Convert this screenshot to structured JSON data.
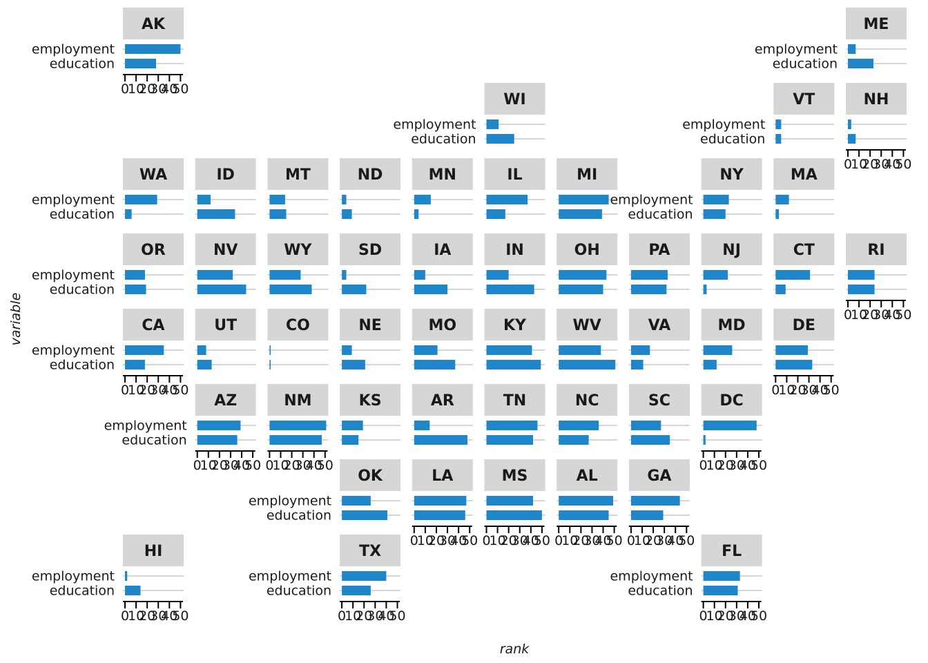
{
  "chart_data": {
    "type": "bar",
    "orientation": "horizontal",
    "layout": "geofacet-us-states",
    "xlabel": "rank",
    "ylabel": "variable",
    "categories": [
      "employment",
      "education"
    ],
    "xlim": [
      0,
      51
    ],
    "x_ticks": [
      0,
      10,
      20,
      30,
      40,
      50
    ],
    "x_tick_labels": [
      "0",
      "10",
      "20",
      "30",
      "40",
      "50"
    ],
    "bar_color": "#1f87c9",
    "strip_color": "#d6d6d6",
    "grid": true,
    "panels": [
      {
        "state": "AK",
        "employment": 50,
        "education": 28
      },
      {
        "state": "ME",
        "employment": 7,
        "education": 23
      },
      {
        "state": "WI",
        "employment": 11,
        "education": 25
      },
      {
        "state": "VT",
        "employment": 5,
        "education": 5
      },
      {
        "state": "NH",
        "employment": 3,
        "education": 7
      },
      {
        "state": "WA",
        "employment": 29,
        "education": 6
      },
      {
        "state": "ID",
        "employment": 12,
        "education": 34
      },
      {
        "state": "MT",
        "employment": 14,
        "education": 15
      },
      {
        "state": "ND",
        "employment": 4,
        "education": 9
      },
      {
        "state": "MN",
        "employment": 15,
        "education": 4
      },
      {
        "state": "IL",
        "employment": 37,
        "education": 17
      },
      {
        "state": "MI",
        "employment": 45,
        "education": 39
      },
      {
        "state": "NY",
        "employment": 23,
        "education": 20
      },
      {
        "state": "MA",
        "employment": 12,
        "education": 3
      },
      {
        "state": "OR",
        "employment": 18,
        "education": 19
      },
      {
        "state": "NV",
        "employment": 32,
        "education": 44
      },
      {
        "state": "WY",
        "employment": 28,
        "education": 38
      },
      {
        "state": "SD",
        "employment": 4,
        "education": 22
      },
      {
        "state": "IA",
        "employment": 10,
        "education": 30
      },
      {
        "state": "IN",
        "employment": 20,
        "education": 43
      },
      {
        "state": "OH",
        "employment": 43,
        "education": 40
      },
      {
        "state": "PA",
        "employment": 33,
        "education": 32
      },
      {
        "state": "NJ",
        "employment": 22,
        "education": 3
      },
      {
        "state": "CT",
        "employment": 31,
        "education": 9
      },
      {
        "state": "RI",
        "employment": 24,
        "education": 24
      },
      {
        "state": "CA",
        "employment": 35,
        "education": 18
      },
      {
        "state": "UT",
        "employment": 8,
        "education": 13
      },
      {
        "state": "CO",
        "employment": 1,
        "education": 1
      },
      {
        "state": "NE",
        "employment": 9,
        "education": 21
      },
      {
        "state": "MO",
        "employment": 21,
        "education": 37
      },
      {
        "state": "KY",
        "employment": 41,
        "education": 49
      },
      {
        "state": "WV",
        "employment": 38,
        "education": 51
      },
      {
        "state": "VA",
        "employment": 17,
        "education": 11
      },
      {
        "state": "MD",
        "employment": 26,
        "education": 12
      },
      {
        "state": "DE",
        "employment": 29,
        "education": 33
      },
      {
        "state": "AZ",
        "employment": 39,
        "education": 36
      },
      {
        "state": "NM",
        "employment": 51,
        "education": 47
      },
      {
        "state": "KS",
        "employment": 19,
        "education": 15
      },
      {
        "state": "AR",
        "employment": 14,
        "education": 48
      },
      {
        "state": "TN",
        "employment": 46,
        "education": 42
      },
      {
        "state": "NC",
        "employment": 36,
        "education": 27
      },
      {
        "state": "SC",
        "employment": 27,
        "education": 35
      },
      {
        "state": "DC",
        "employment": 48,
        "education": 2
      },
      {
        "state": "OK",
        "employment": 26,
        "education": 41
      },
      {
        "state": "LA",
        "employment": 47,
        "education": 46
      },
      {
        "state": "MS",
        "employment": 42,
        "education": 50
      },
      {
        "state": "AL",
        "employment": 49,
        "education": 45
      },
      {
        "state": "GA",
        "employment": 44,
        "education": 29
      },
      {
        "state": "HI",
        "employment": 2,
        "education": 14
      },
      {
        "state": "TX",
        "employment": 40,
        "education": 26
      },
      {
        "state": "FL",
        "employment": 33,
        "education": 31
      }
    ]
  }
}
